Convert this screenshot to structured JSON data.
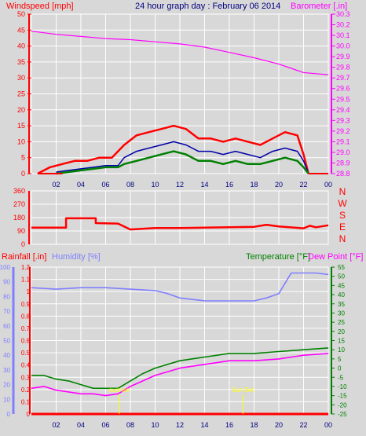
{
  "title": "24 hour graph day : February 06 2014",
  "colors": {
    "background": "#d8d8d8",
    "plot_bg": "#d8d8d8",
    "grid": "#ffffff",
    "wind": "#ff0000",
    "gust": "#ff0000",
    "avg_wind": "#0000aa",
    "wind_low": "#008000",
    "barometer": "#ff00ff",
    "direction": "#ff0000",
    "humidity": "#7f7fff",
    "temperature": "#008000",
    "dewpoint": "#ff00ff",
    "rainfall": "#ff0000",
    "marker": "#ffff00",
    "axis_text": "#000080"
  },
  "chart_data": [
    {
      "type": "line",
      "name": "wind-barometer",
      "left_label": "Windspeed [mph]",
      "right_label": "Barometer [.in]",
      "left_ticks": [
        0,
        5,
        10,
        15,
        20,
        25,
        30,
        35,
        40,
        45,
        50
      ],
      "right_ticks": [
        28.8,
        28.9,
        29,
        29.1,
        29.2,
        29.3,
        29.4,
        29.5,
        29.6,
        29.7,
        29.8,
        29.9,
        30,
        30.1,
        30.2,
        30.3
      ],
      "left_range": [
        0,
        50
      ],
      "right_range": [
        28.8,
        30.3
      ],
      "x_ticks": [
        "02",
        "04",
        "06",
        "08",
        "10",
        "12",
        "14",
        "16",
        "18",
        "20",
        "22",
        "00"
      ],
      "x_range": [
        0,
        24
      ],
      "series": [
        {
          "role": "barometer",
          "x": [
            0,
            2,
            4,
            6,
            8,
            10,
            12,
            14,
            16,
            18,
            20,
            21,
            22,
            23,
            24
          ],
          "y": [
            30.14,
            30.11,
            30.09,
            30.07,
            30.06,
            30.04,
            30.02,
            29.99,
            29.94,
            29.89,
            29.83,
            29.79,
            29.75,
            29.74,
            29.73
          ]
        },
        {
          "role": "gust",
          "x": [
            0.5,
            1.5,
            2.5,
            3.5,
            4.5,
            5.5,
            6.5,
            7.5,
            8.5,
            9.5,
            10.5,
            11.5,
            12.5,
            13.5,
            14.5,
            15.5,
            16.5,
            17.5,
            18.5,
            19.5,
            20.5,
            21.5,
            22,
            22.4
          ],
          "y": [
            0,
            2,
            3,
            4,
            4,
            5,
            5,
            9,
            12,
            13,
            14,
            15,
            14,
            11,
            11,
            10,
            11,
            10,
            9,
            11,
            13,
            12,
            6,
            0
          ]
        },
        {
          "role": "avg_wind",
          "x": [
            2,
            3,
            4,
            5,
            6,
            7,
            7.5,
            8.5,
            9.5,
            10.5,
            11.5,
            12.5,
            13.5,
            14.5,
            15.5,
            16.5,
            17.5,
            18.5,
            19.5,
            20.5,
            21.5,
            22,
            22.4
          ],
          "y": [
            0.5,
            1,
            1.5,
            2,
            2.5,
            2.5,
            5,
            7,
            8,
            9,
            10,
            9,
            7,
            7,
            6,
            7,
            6,
            5,
            7,
            8,
            7,
            4,
            0
          ]
        },
        {
          "role": "wind_low",
          "x": [
            2,
            3,
            4,
            5,
            6,
            7,
            7.5,
            8.5,
            9.5,
            10.5,
            11.5,
            12.5,
            13.5,
            14.5,
            15.5,
            16.5,
            17.5,
            18.5,
            19.5,
            20.5,
            21.5,
            22,
            22.4
          ],
          "y": [
            0,
            0.5,
            1,
            1.5,
            2,
            2,
            3,
            4,
            5,
            6,
            7,
            6,
            4,
            4,
            3,
            4,
            3,
            3,
            4,
            5,
            4,
            2,
            0
          ]
        }
      ]
    },
    {
      "type": "line",
      "name": "wind-direction",
      "left_ticks": [
        0,
        90,
        180,
        270,
        360
      ],
      "left_range": [
        0,
        360
      ],
      "right_ticks": [
        "N",
        "W",
        "S",
        "E",
        "N"
      ],
      "x_range": [
        0,
        24
      ],
      "series": [
        {
          "role": "direction",
          "x": [
            0,
            1,
            2,
            2.8,
            2.8,
            5.2,
            5.2,
            7,
            8,
            10,
            12,
            14,
            16,
            18,
            19,
            20,
            22,
            22.5,
            23,
            24
          ],
          "y": [
            112,
            112,
            112,
            112,
            175,
            175,
            143,
            140,
            100,
            110,
            110,
            112,
            115,
            118,
            132,
            120,
            108,
            125,
            115,
            128
          ]
        }
      ]
    },
    {
      "type": "line",
      "name": "temperature-humidity-rain",
      "left_label_1": "Rainfall [.in]",
      "left_label_2": "Humidity [%]",
      "right_label_1": "Temperature [°F]",
      "right_label_2": "Dew Point [°F]",
      "rain_ticks": [
        0,
        0.1,
        0.2,
        0.3,
        0.4,
        0.5,
        0.6,
        0.7,
        0.8,
        0.9,
        1,
        1.1,
        1.2
      ],
      "rain_range": [
        0,
        1.2
      ],
      "humidity_ticks": [
        0,
        10,
        20,
        30,
        40,
        50,
        60,
        70,
        80,
        90,
        100
      ],
      "humidity_range": [
        0,
        100
      ],
      "temp_ticks": [
        -25,
        -20,
        -15,
        -10,
        -5,
        0,
        5,
        10,
        15,
        20,
        25,
        30,
        35,
        40,
        45,
        50,
        55
      ],
      "temp_range": [
        -25,
        55
      ],
      "x_ticks": [
        "02",
        "04",
        "06",
        "08",
        "10",
        "12",
        "14",
        "16",
        "18",
        "20",
        "22",
        "00"
      ],
      "x_range": [
        0,
        24
      ],
      "series": [
        {
          "role": "humidity",
          "x": [
            0,
            2,
            4,
            6,
            8,
            10,
            11,
            12,
            14,
            16,
            18,
            19,
            20,
            20.5,
            21,
            22,
            23,
            24
          ],
          "y": [
            86,
            85,
            86,
            86,
            85,
            84,
            82,
            79,
            77,
            77,
            77,
            79,
            82,
            89,
            96,
            96,
            96,
            95
          ]
        },
        {
          "role": "temperature",
          "x": [
            0,
            1,
            2,
            3,
            4,
            5,
            6,
            7,
            8,
            9,
            10,
            12,
            14,
            16,
            18,
            20,
            22,
            24
          ],
          "y": [
            -4,
            -4,
            -6,
            -7,
            -9,
            -11,
            -11,
            -11,
            -7,
            -3,
            0,
            4,
            6,
            8,
            8,
            9,
            10,
            11
          ]
        },
        {
          "role": "dewpoint",
          "x": [
            0,
            1,
            2,
            3,
            4,
            5,
            6,
            7,
            8,
            9,
            10,
            12,
            14,
            16,
            18,
            20,
            22,
            24
          ],
          "y": [
            -11,
            -10,
            -12,
            -13,
            -14,
            -14,
            -15,
            -14,
            -10,
            -7,
            -4,
            0,
            2,
            4,
            4,
            5,
            7,
            8
          ]
        },
        {
          "role": "rainfall",
          "x": [
            0,
            24
          ],
          "y": [
            0,
            0
          ]
        }
      ],
      "markers": [
        {
          "label": "sunrise",
          "x": 7.1
        },
        {
          "label": "Sun Set",
          "x": 17.1
        }
      ]
    }
  ]
}
